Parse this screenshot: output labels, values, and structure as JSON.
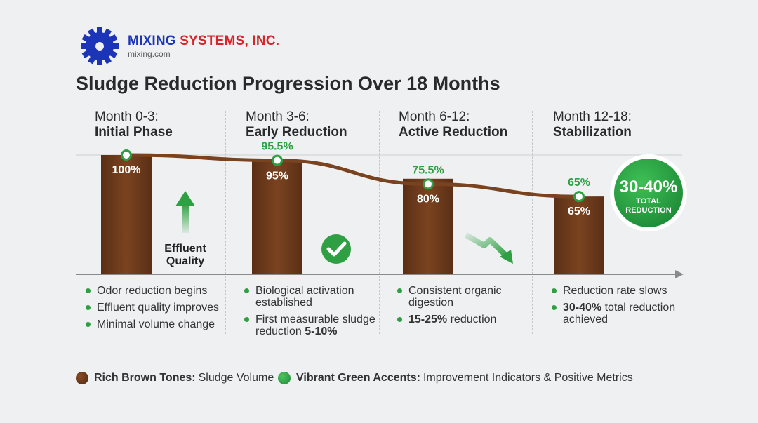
{
  "logo": {
    "company_part1": "MIXING ",
    "company_part2": "SYSTEMS, INC.",
    "website": "mixing.com"
  },
  "title": "Sludge Reduction Progression Over 18 Months",
  "columns": [
    {
      "period": "Month 0-3:",
      "name": "Initial Phase"
    },
    {
      "period": "Month 3-6:",
      "name": "Early Reduction"
    },
    {
      "period": "Month 6-12:",
      "name": "Active Reduction"
    },
    {
      "period": "Month 12-18:",
      "name": "Stabilization"
    }
  ],
  "chart_data": {
    "type": "bar",
    "title": "Sludge Reduction Progression Over 18 Months",
    "categories": [
      "Month 0-3",
      "Month 3-6",
      "Month 6-12",
      "Month 12-18"
    ],
    "series": [
      {
        "name": "Sludge Volume (bars)",
        "values": [
          100,
          95,
          80,
          65
        ],
        "labels": [
          "100%",
          "95%",
          "80%",
          "65%"
        ]
      },
      {
        "name": "Trend line",
        "values": [
          100,
          95.5,
          75.5,
          65
        ],
        "labels": [
          "",
          "95.5%",
          "75.5%",
          "65%"
        ]
      }
    ],
    "ylim": [
      0,
      100
    ],
    "annotations": {
      "effluent_line1": "Effluent",
      "effluent_line2": "Quality"
    },
    "badge": {
      "value": "30-40%",
      "line1": "TOTAL",
      "line2": "REDUCTION"
    }
  },
  "bullets": [
    [
      {
        "text": "Odor reduction begins"
      },
      {
        "text": "Effluent quality improves"
      },
      {
        "text": "Minimal volume change"
      }
    ],
    [
      {
        "text": "Biological activation established"
      },
      {
        "text": "First measurable sludge reduction ",
        "strong": "5-10%"
      }
    ],
    [
      {
        "text": "Consistent organic digestion"
      },
      {
        "strong_first": "15-25%",
        "text": " reduction"
      }
    ],
    [
      {
        "text": "Reduction rate slows"
      },
      {
        "strong_first": "30-40%",
        "text": " total reduction achieved"
      }
    ]
  ],
  "legend": [
    {
      "key": "Rich Brown Tones:",
      "desc": "Sludge Volume",
      "color": "#6b3a1e"
    },
    {
      "key": "Vibrant Green Accents:",
      "desc": "Improvement Indicators & Positive Metrics",
      "color": "#2ea043"
    }
  ],
  "colors": {
    "brown": "#6b3a1e",
    "brown_light": "#8a4a26",
    "green": "#2ea043",
    "green_dark": "#1f8a3a"
  }
}
